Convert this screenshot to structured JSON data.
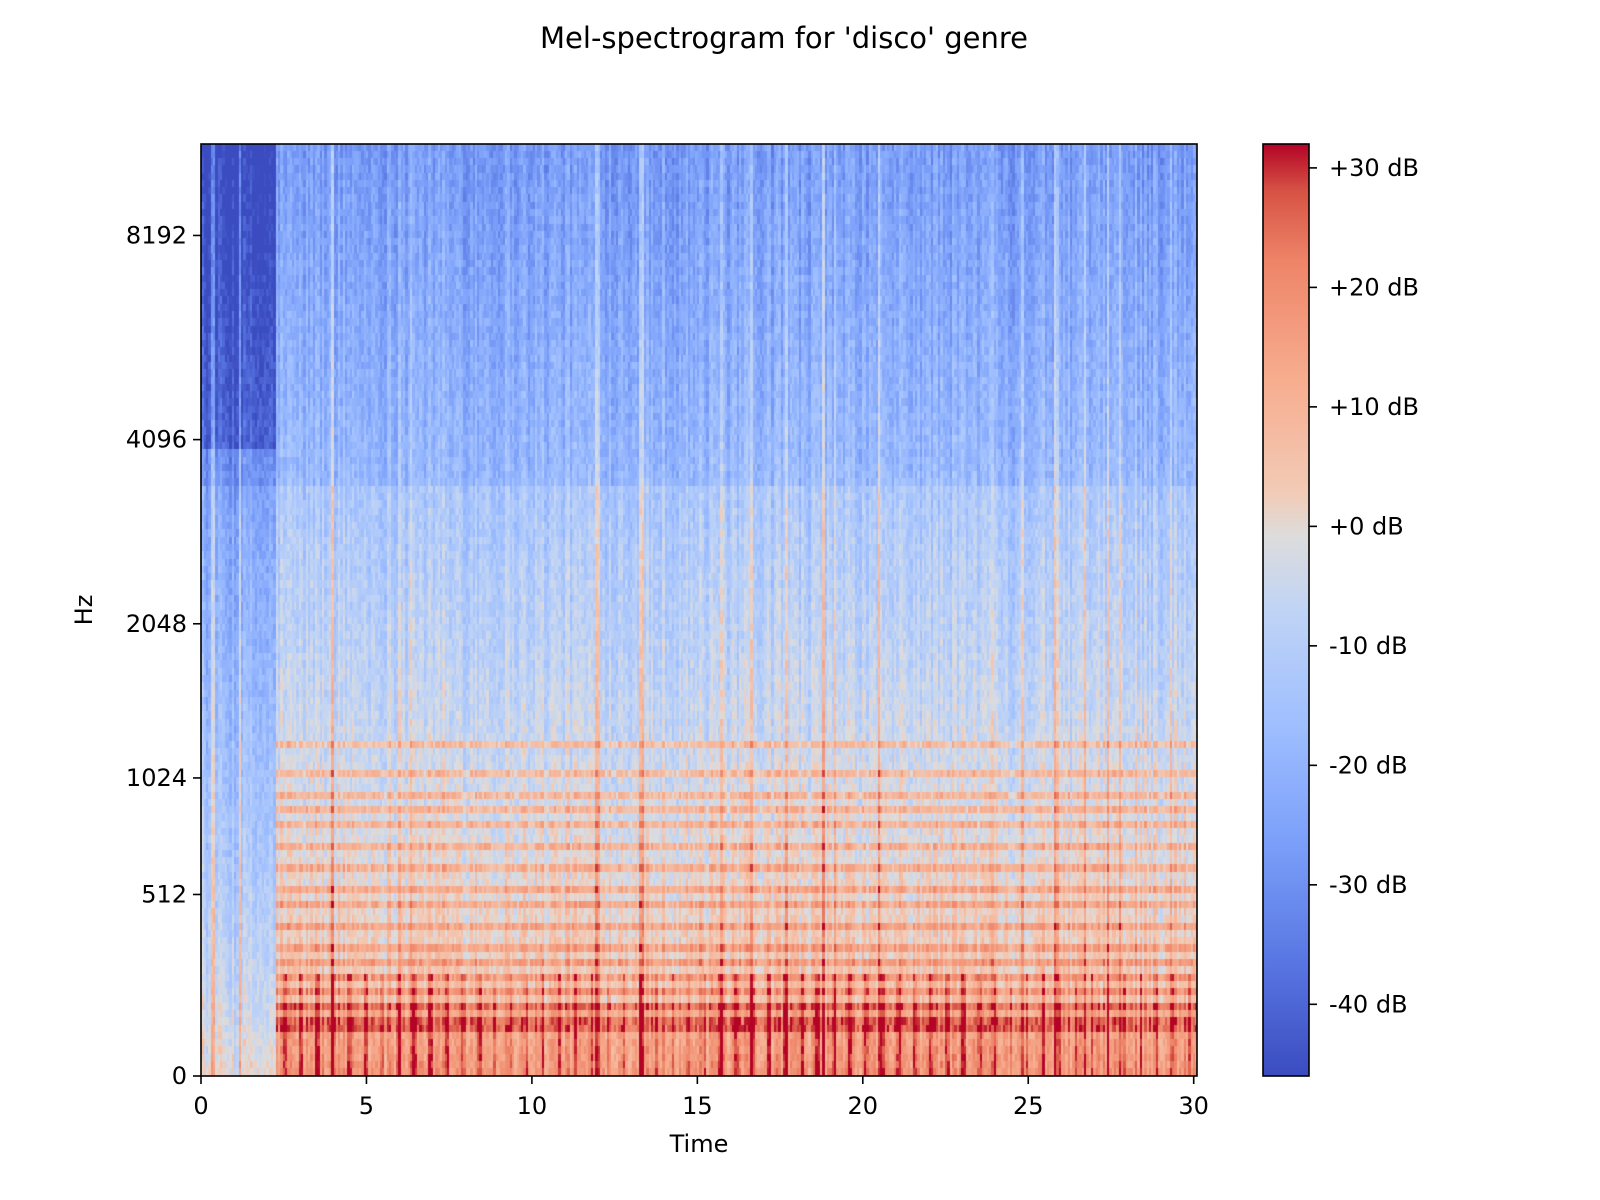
{
  "chart_data": {
    "type": "heatmap",
    "title": "Mel-spectrogram for 'disco' genre",
    "xlabel": "Time",
    "ylabel": "Hz",
    "xlim": [
      0,
      30.1
    ],
    "x_ticks": [
      0,
      5,
      10,
      15,
      20,
      25,
      30
    ],
    "y_scale": "mel",
    "y_ticks": [
      0,
      512,
      1024,
      2048,
      4096,
      8192
    ],
    "ylim": [
      0,
      11025
    ],
    "colormap": "coolwarm",
    "colorbar": {
      "vmin": -46,
      "vmax": 32,
      "ticks": [
        30,
        20,
        10,
        0,
        -10,
        -20,
        -30,
        -40
      ],
      "tick_labels": [
        "+30 dB",
        "+20 dB",
        "+10 dB",
        "+0 dB",
        "-10 dB",
        "-20 dB",
        "-30 dB",
        "-40 dB"
      ]
    },
    "colors": {
      "low": "#3b4cc0",
      "mid": "#dddddd",
      "high": "#b40426"
    },
    "harmonic_bands_hz": [
      100,
      130,
      160,
      200,
      250,
      290,
      330,
      400,
      470,
      540,
      600,
      700,
      780,
      860,
      940,
      1050,
      1200
    ]
  }
}
